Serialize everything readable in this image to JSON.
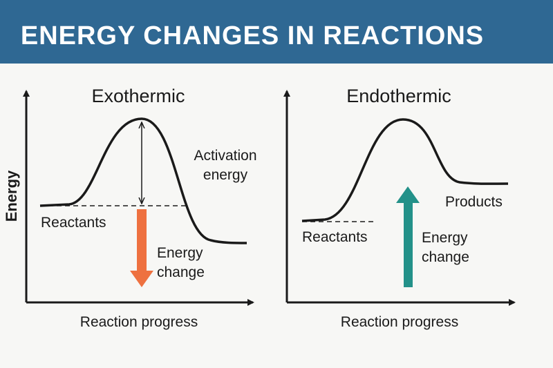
{
  "title": "ENERGY CHANGES IN REACTIONS",
  "colors": {
    "header": "#2f6893",
    "exothermic_arrow": "#ee7140",
    "endothermic_arrow": "#239189",
    "curve": "#1a1a1a"
  },
  "y_axis_label": "Energy",
  "exothermic": {
    "title": "Exothermic",
    "activation_label": [
      "Activation",
      "energy"
    ],
    "reactants_label": "Reactants",
    "energy_change_label": [
      "Energy",
      "change"
    ],
    "x_axis_label": "Reaction progress"
  },
  "endothermic": {
    "title": "Endothermic",
    "products_label": "Products",
    "reactants_label": "Reactants",
    "energy_change_label": [
      "Energy",
      "change"
    ],
    "x_axis_label": "Reaction progress"
  }
}
